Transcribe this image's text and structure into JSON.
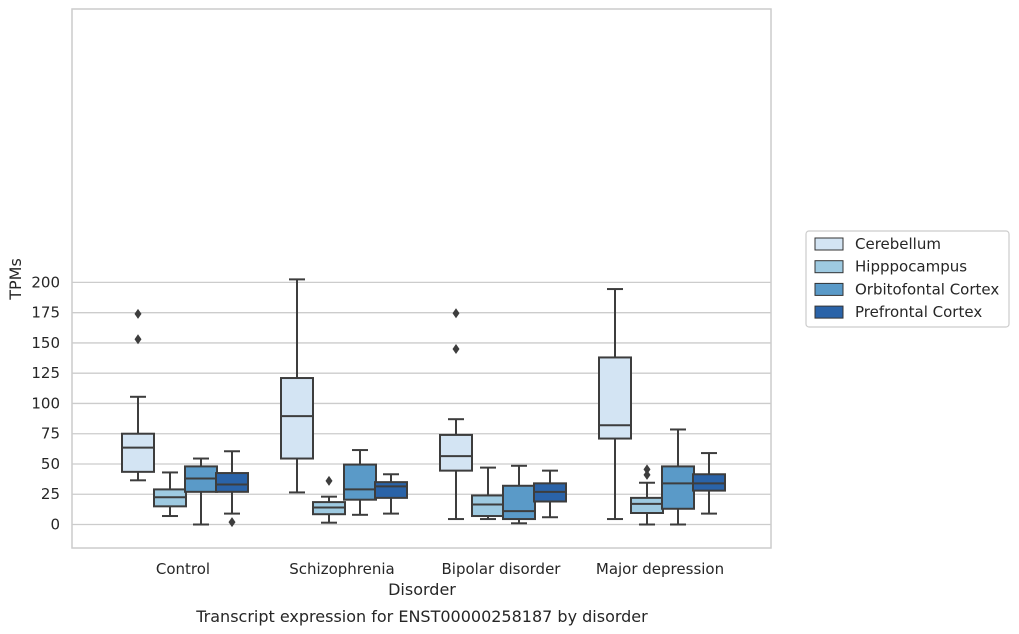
{
  "chart_data": {
    "type": "box",
    "caption": "Transcript expression for ENST00000258187 by disorder",
    "xlabel": "Disorder",
    "ylabel": "TPMs",
    "ylim": [
      -10,
      213
    ],
    "yticks": [
      0,
      25,
      50,
      75,
      100,
      125,
      150,
      175,
      200
    ],
    "grid": "horizontal",
    "legend_position": "right",
    "categories": [
      "Control",
      "Schizophrenia",
      "Bipolar disorder",
      "Major depression"
    ],
    "series": [
      {
        "name": "Cerebellum",
        "color": "#d3e4f3",
        "boxes": [
          {
            "whisker_low": 36.5,
            "q1": 43.5,
            "median": 63.5,
            "q3": 75,
            "whisker_high": 105.5,
            "outliers": [
              153,
              174
            ]
          },
          {
            "whisker_low": 26.5,
            "q1": 54.5,
            "median": 89.5,
            "q3": 121,
            "whisker_high": 202.5,
            "outliers": []
          },
          {
            "whisker_low": 4.5,
            "q1": 44.5,
            "median": 56.5,
            "q3": 74,
            "whisker_high": 87,
            "outliers": [
              145,
              174.5
            ]
          },
          {
            "whisker_low": 4.5,
            "q1": 71,
            "median": 82,
            "q3": 138,
            "whisker_high": 194.5,
            "outliers": []
          }
        ]
      },
      {
        "name": "Hipppocampus",
        "color": "#9ecae1",
        "boxes": [
          {
            "whisker_low": 7,
            "q1": 15,
            "median": 22.5,
            "q3": 29,
            "whisker_high": 43,
            "outliers": []
          },
          {
            "whisker_low": 1.5,
            "q1": 8.5,
            "median": 14,
            "q3": 18.5,
            "whisker_high": 23,
            "outliers": [
              36
            ]
          },
          {
            "whisker_low": 4.5,
            "q1": 7,
            "median": 16.5,
            "q3": 24,
            "whisker_high": 47,
            "outliers": []
          },
          {
            "whisker_low": 0,
            "q1": 9.5,
            "median": 17,
            "q3": 22,
            "whisker_high": 34.5,
            "outliers": [
              41,
              45.5
            ]
          }
        ]
      },
      {
        "name": "Orbitofontal Cortex",
        "color": "#5a9ac8",
        "boxes": [
          {
            "whisker_low": 0,
            "q1": 27,
            "median": 38,
            "q3": 48,
            "whisker_high": 54.5,
            "outliers": []
          },
          {
            "whisker_low": 8,
            "q1": 20.5,
            "median": 29,
            "q3": 49.5,
            "whisker_high": 61.5,
            "outliers": []
          },
          {
            "whisker_low": 1,
            "q1": 4.5,
            "median": 11,
            "q3": 32,
            "whisker_high": 48.5,
            "outliers": []
          },
          {
            "whisker_low": 0,
            "q1": 13,
            "median": 34,
            "q3": 48,
            "whisker_high": 78.5,
            "outliers": []
          }
        ]
      },
      {
        "name": "Prefrontal Cortex",
        "color": "#2a63a8",
        "boxes": [
          {
            "whisker_low": 9,
            "q1": 27,
            "median": 33,
            "q3": 42.5,
            "whisker_high": 60.5,
            "outliers": [
              2
            ]
          },
          {
            "whisker_low": 9,
            "q1": 22,
            "median": 31.5,
            "q3": 35,
            "whisker_high": 41.5,
            "outliers": []
          },
          {
            "whisker_low": 6,
            "q1": 19,
            "median": 27,
            "q3": 34,
            "whisker_high": 44.5,
            "outliers": []
          },
          {
            "whisker_low": 9,
            "q1": 28,
            "median": 34,
            "q3": 41.5,
            "whisker_high": 59,
            "outliers": []
          }
        ]
      }
    ]
  }
}
